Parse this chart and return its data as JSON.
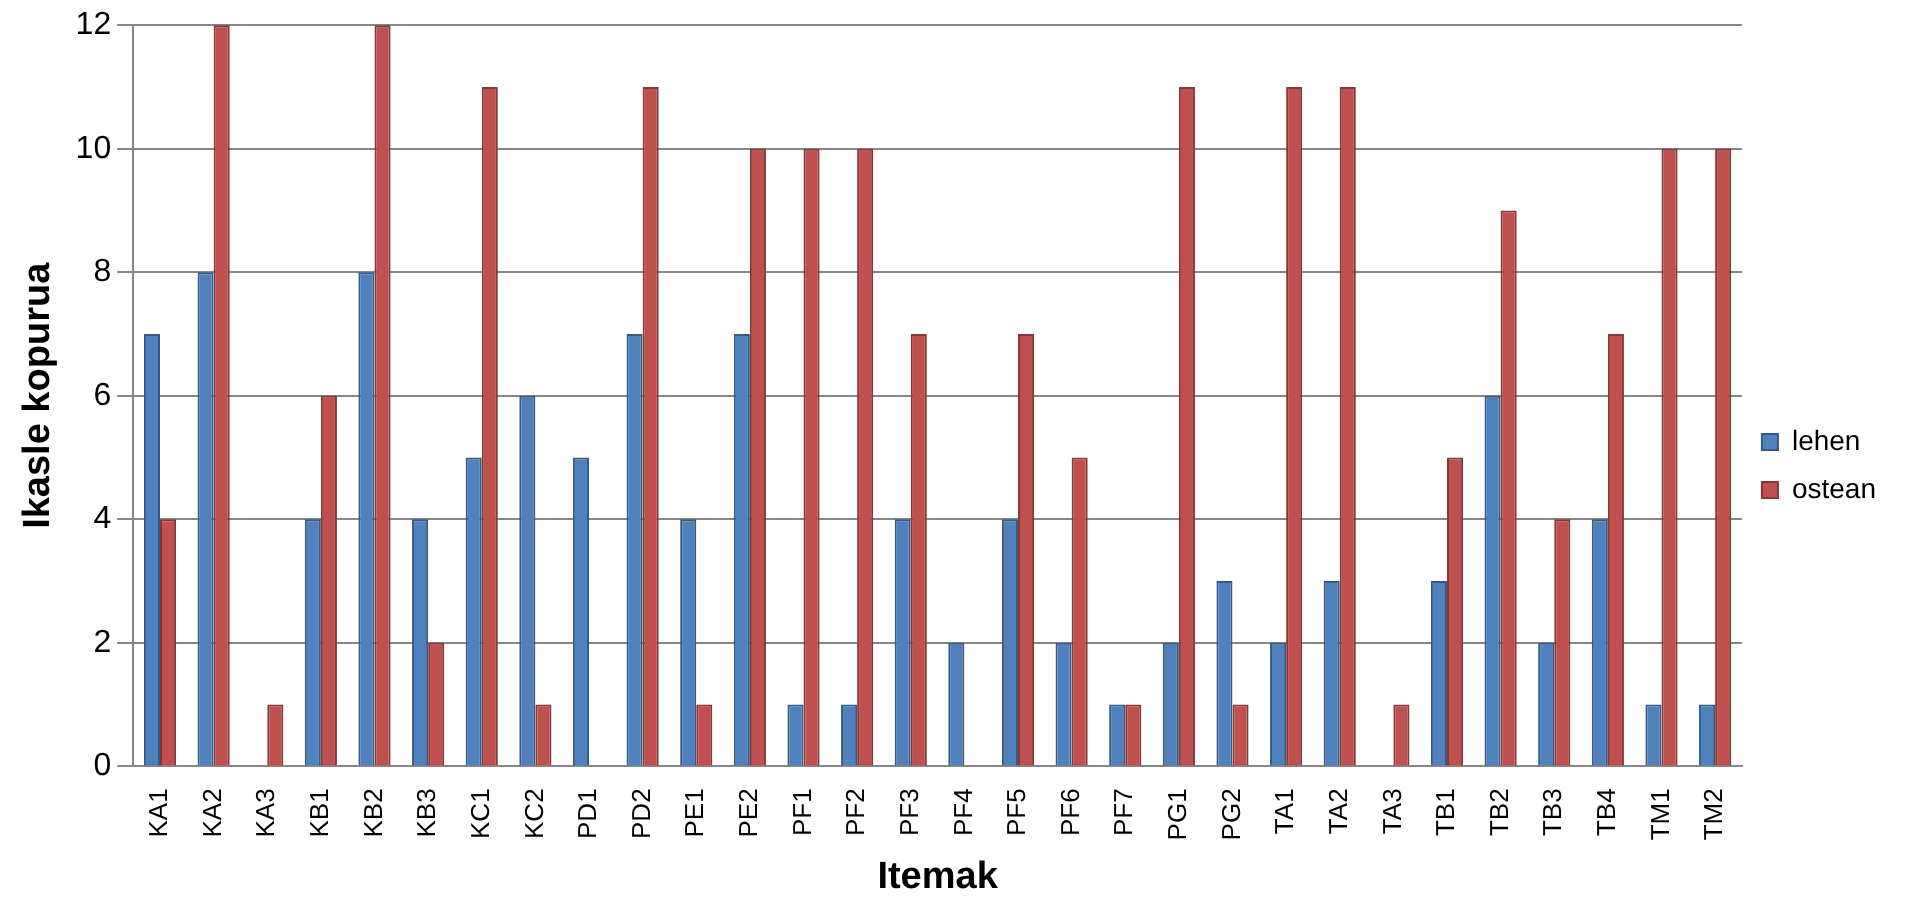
{
  "chart_data": {
    "type": "bar",
    "xlabel": "Itemak",
    "ylabel": "Ikasle kopurua",
    "categories": [
      "KA1",
      "KA2",
      "KA3",
      "KB1",
      "KB2",
      "KB3",
      "KC1",
      "KC2",
      "PD1",
      "PD2",
      "PE1",
      "PE2",
      "PF1",
      "PF2",
      "PF3",
      "PF4",
      "PF5",
      "PF6",
      "PF7",
      "PG1",
      "PG2",
      "TA1",
      "TA2",
      "TA3",
      "TB1",
      "TB2",
      "TB3",
      "TB4",
      "TM1",
      "TM2"
    ],
    "series": [
      {
        "name": "lehen",
        "color": "#4f81bd",
        "values": [
          7,
          8,
          0,
          4,
          8,
          4,
          5,
          6,
          5,
          7,
          4,
          7,
          1,
          1,
          4,
          2,
          4,
          2,
          1,
          2,
          3,
          2,
          3,
          0,
          3,
          6,
          2,
          4,
          1,
          1
        ]
      },
      {
        "name": "ostean",
        "color": "#c0504d",
        "values": [
          4,
          12,
          1,
          6,
          12,
          2,
          11,
          1,
          0,
          11,
          1,
          10,
          10,
          10,
          7,
          0,
          7,
          5,
          1,
          11,
          1,
          11,
          11,
          1,
          5,
          9,
          4,
          7,
          10,
          10
        ]
      }
    ],
    "ylim": [
      0,
      12
    ],
    "yticks": [
      0,
      2,
      4,
      6,
      8,
      10,
      12
    ],
    "grid": "y",
    "legend": "right"
  }
}
